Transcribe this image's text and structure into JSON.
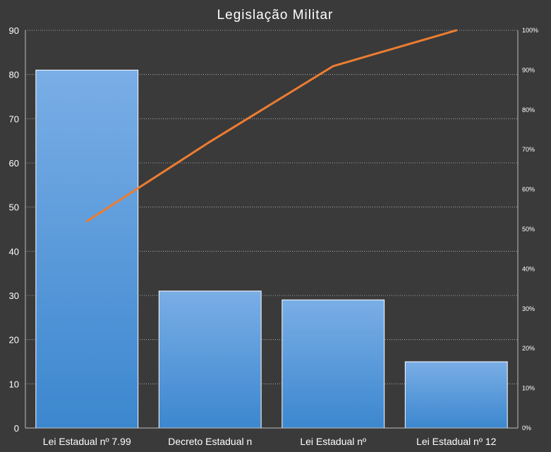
{
  "chart_data": {
    "type": "bar",
    "title": "Legislação  Militar",
    "categories": [
      "Lei Estadual nº 7.99",
      "Decreto Estadual n",
      "Lei Estadual nº",
      "Lei Estadual nº 12"
    ],
    "values": [
      81,
      31,
      29,
      15
    ],
    "cumulative_percent": [
      52,
      72,
      91,
      100
    ],
    "ylim": [
      0,
      90
    ],
    "yticks": [
      0,
      10,
      20,
      30,
      40,
      50,
      60,
      70,
      80,
      90
    ],
    "y2lim": [
      0,
      100
    ],
    "y2ticks": [
      "0%",
      "10%",
      "20%",
      "30%",
      "40%",
      "50%",
      "60%",
      "70%",
      "80%",
      "90%",
      "100%"
    ],
    "grid": true,
    "colors": {
      "background": "#3a3a3a",
      "bar_top": "#7aaee6",
      "bar_bottom": "#3c87cf",
      "line": "#ed7d31"
    }
  }
}
